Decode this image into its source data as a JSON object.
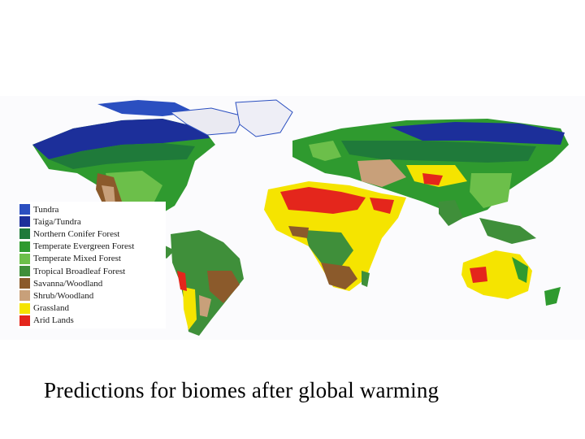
{
  "caption": "Predictions for biomes after global warming",
  "legend": {
    "items": [
      {
        "label": "Tundra",
        "color": "#2b4fc0"
      },
      {
        "label": "Taiga/Tundra",
        "color": "#1c2f9a"
      },
      {
        "label": "Northern Conifer Forest",
        "color": "#1f7a3a"
      },
      {
        "label": "Temperate Evergreen Forest",
        "color": "#2f9a2f"
      },
      {
        "label": "Temperate Mixed Forest",
        "color": "#6cbf4a"
      },
      {
        "label": "Tropical Broadleaf Forest",
        "color": "#3f8f3a"
      },
      {
        "label": "Savanna/Woodland",
        "color": "#8b5a2b"
      },
      {
        "label": "Shrub/Woodland",
        "color": "#c8a07a"
      },
      {
        "label": "Grassland",
        "color": "#f5e400"
      },
      {
        "label": "Arid Lands",
        "color": "#e4261c"
      }
    ]
  }
}
